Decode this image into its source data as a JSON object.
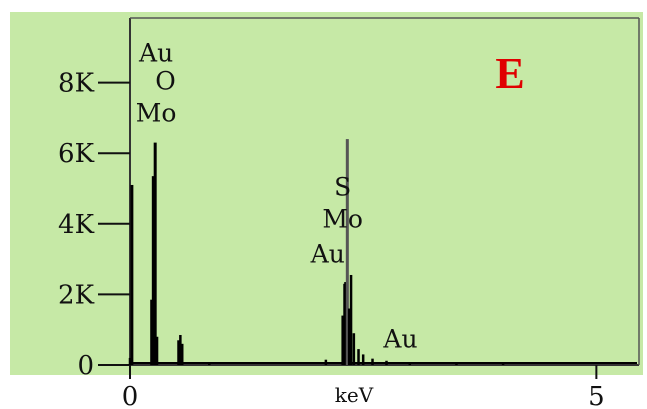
{
  "colors": {
    "background": "#c6e9a6",
    "outer_background": "#ffffff",
    "spectrum": "#000000",
    "panel_letter": "#e00000"
  },
  "panel_label": "E",
  "chart_data": {
    "type": "bar",
    "title": "",
    "xlabel": "keV",
    "ylabel": "",
    "xlim": [
      0,
      5.5
    ],
    "ylim": [
      0,
      10000
    ],
    "grid": false,
    "x_ticks": [
      {
        "value": 0,
        "label": "0"
      },
      {
        "value": 5,
        "label": "5"
      }
    ],
    "y_ticks": [
      {
        "value": 0,
        "label": "0"
      },
      {
        "value": 2000,
        "label": "2K"
      },
      {
        "value": 4000,
        "label": "4K"
      },
      {
        "value": 6000,
        "label": "6K"
      },
      {
        "value": 8000,
        "label": "8K"
      }
    ],
    "series": [
      {
        "x": [
          0.0,
          0.02,
          0.23,
          0.25,
          0.27,
          0.29,
          0.52,
          0.54,
          0.56,
          0.85,
          2.1,
          2.28,
          2.3,
          2.31,
          2.33,
          2.35,
          2.37,
          2.4,
          2.45,
          2.5,
          2.6,
          2.75,
          3.0,
          3.5,
          4.0
        ],
        "values": [
          200,
          5100,
          1850,
          5350,
          6300,
          800,
          700,
          850,
          600,
          80,
          150,
          1400,
          2300,
          2350,
          6400,
          1600,
          2550,
          900,
          450,
          300,
          180,
          120,
          80,
          60,
          40
        ]
      }
    ],
    "annotations": [
      {
        "text": "Au",
        "x": 0.28,
        "y": 8600
      },
      {
        "text": "O",
        "x": 0.38,
        "y": 7800
      },
      {
        "text": "Mo",
        "x": 0.28,
        "y": 6900
      },
      {
        "text": "S",
        "x": 2.28,
        "y": 4800
      },
      {
        "text": "Mo",
        "x": 2.28,
        "y": 3900
      },
      {
        "text": "Au",
        "x": 2.12,
        "y": 2900
      },
      {
        "text": "Au",
        "x": 2.9,
        "y": 500
      }
    ]
  }
}
